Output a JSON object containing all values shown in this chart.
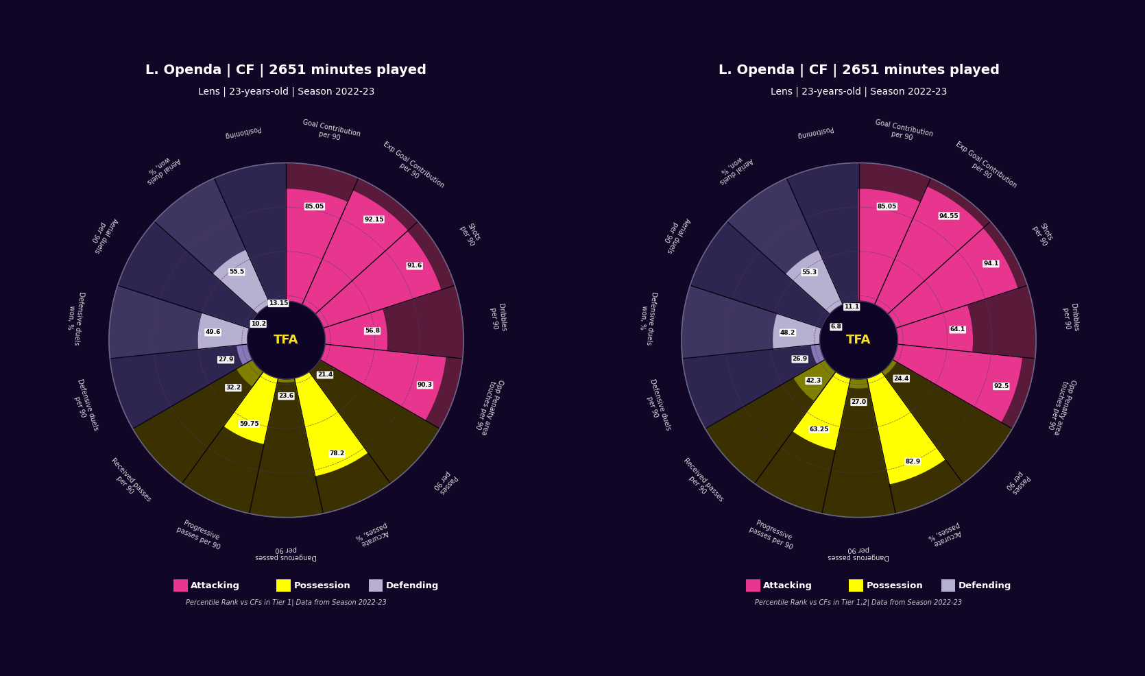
{
  "background_color": "#120627",
  "title_line1": "L. Openda | CF | 2651 minutes played",
  "title_line2": "Lens | 23-years-old | Season 2022-23",
  "title_color": "#ffffff",
  "tfa_color": "#f5e030",
  "categories": [
    "Goal Contribution\nper 90",
    "Exp Goal Contribution\nper 90",
    "Shots\nper 90",
    "Dribbles\nper 90",
    "Opp Penalty area\ntouches per 90",
    "Passes\nper 90",
    "Accurate\npasses, %",
    "Dangerous passes\nper 90",
    "Progressive\npasses per 90",
    "Received passes\nper 90",
    "Defensive duels\nper 90",
    "Defensive duels\nwon, %",
    "Aerial duels\nper 90",
    "Aerial duels\nwon, %",
    "Positioning"
  ],
  "cat_types": [
    "attacking",
    "attacking",
    "attacking",
    "attacking",
    "attacking",
    "possession",
    "possession",
    "possession",
    "possession",
    "possession",
    "defending",
    "defending",
    "defending",
    "defending",
    "defending"
  ],
  "bright_slices": [
    6,
    8
  ],
  "colors": {
    "attacking_fill": "#e8368f",
    "attacking_bg": "#5a1a3a",
    "possession_fill": "#808000",
    "possession_bright_fill": "#ffff00",
    "possession_bg": "#3a3000",
    "defending_fill": "#8878b8",
    "defending_bg": "#2e2650",
    "defending_light_fill": "#b8b0d0",
    "defending_light_bg": "#3e3660"
  },
  "chart1": {
    "values": [
      85.05,
      92.15,
      91.6,
      56.8,
      90.3,
      21.4,
      78.2,
      23.6,
      59.75,
      32.2,
      27.9,
      49.6,
      10.2,
      55.5,
      13.15
    ],
    "footnote": "Percentile Rank vs CFs in Tier 1| Data from Season 2022-23"
  },
  "chart2": {
    "values": [
      85.05,
      94.55,
      94.1,
      64.1,
      92.5,
      24.4,
      82.9,
      27.0,
      63.25,
      42.3,
      26.9,
      48.2,
      6.8,
      55.3,
      11.1
    ],
    "footnote": "Percentile Rank vs CFs in Tier 1,2| Data from Season 2022-23"
  },
  "max_value": 100,
  "ring_values": [
    25,
    50,
    75,
    100
  ],
  "ring_color": "#4a3a6a",
  "label_color": "#dddddd",
  "label_fontsize": 7.0,
  "value_fontsize": 6.5,
  "legend_items": [
    {
      "label": "Attacking",
      "color": "#e8368f"
    },
    {
      "label": "Possession",
      "color": "#ffff00"
    },
    {
      "label": "Defending",
      "color": "#b8b0d0"
    }
  ]
}
